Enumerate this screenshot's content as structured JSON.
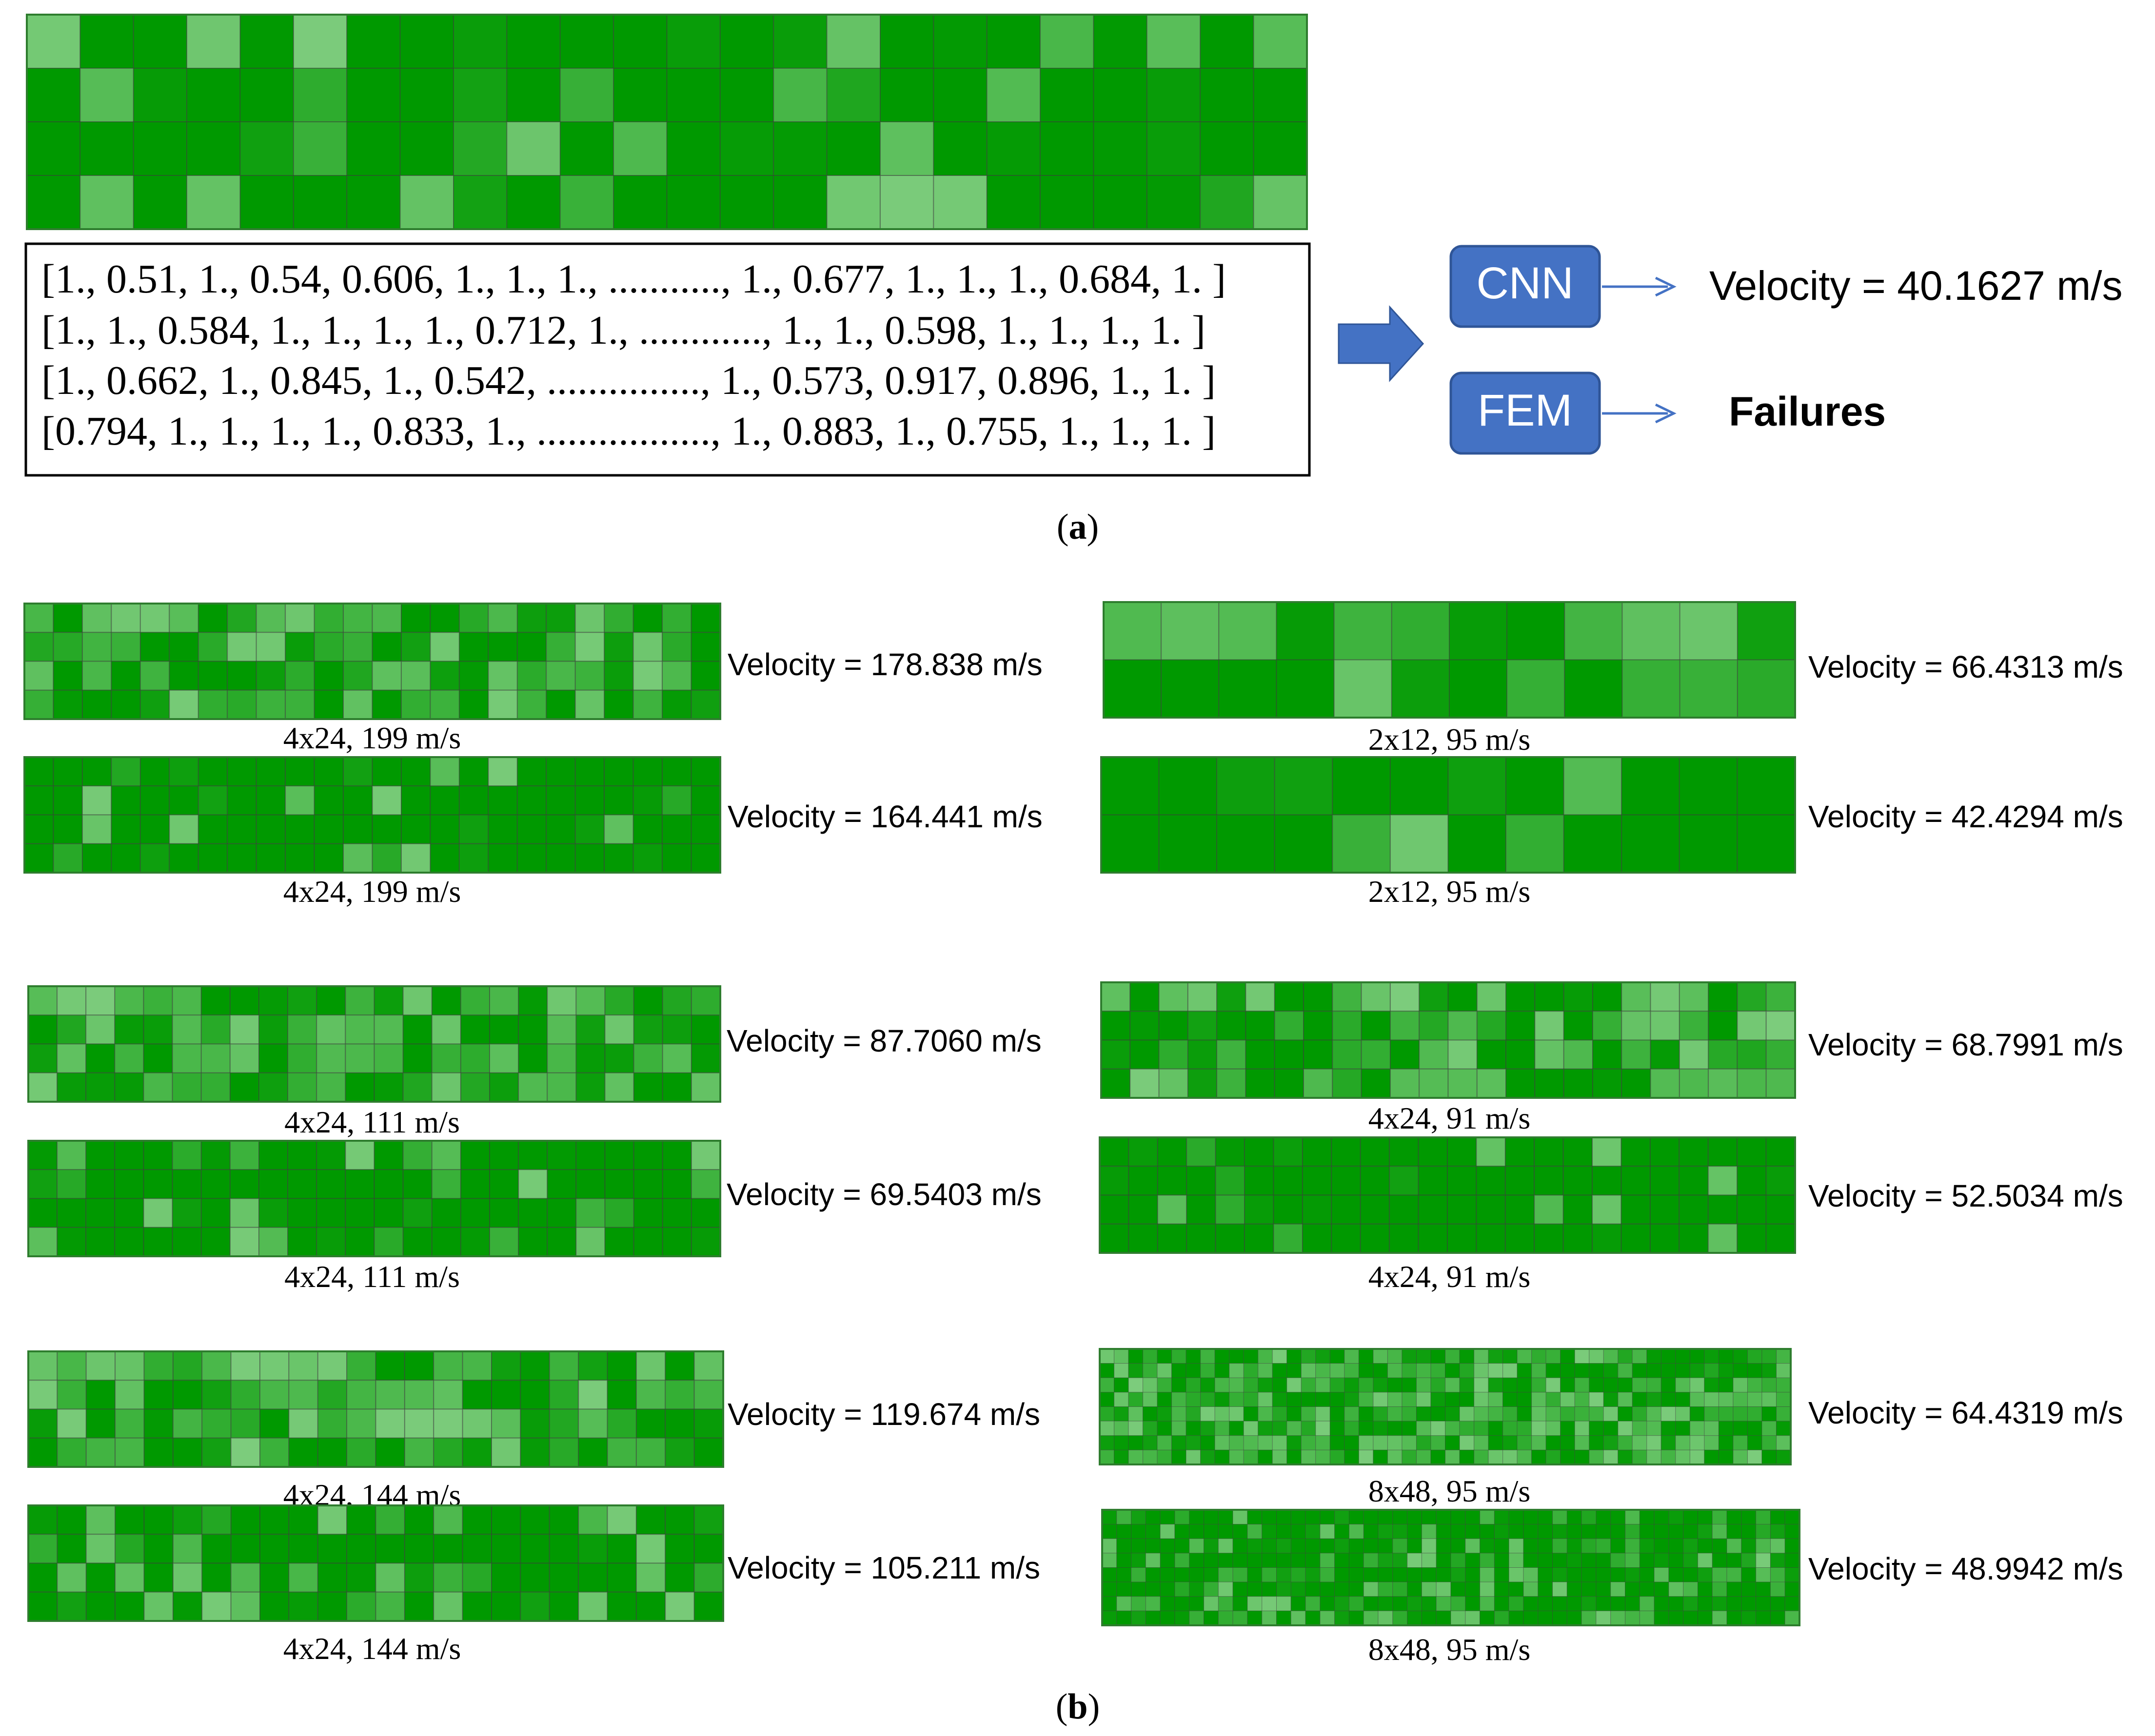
{
  "colors": {
    "dark_green": "#009900",
    "light_green": "#7ccc7c",
    "grid_line": "#555555",
    "box_blue": "#4472c4",
    "box_blue_border": "#2f5597",
    "arrow_blue": "#4472c4"
  },
  "panel_a": {
    "main_grid": {
      "rows": 4,
      "cols": 24
    },
    "matrix_lines": [
      "[1., 0.51, 1., 0.54, 0.606, 1., 1., 1., ..........., 1., 0.677, 1., 1., 1., 0.684, 1. ]",
      "[1., 1., 0.584, 1., 1., 1., 1., 0.712, 1., ............, 1., 1., 0.598, 1., 1., 1., 1.   ]",
      "[1., 0.662, 1., 0.845, 1., 0.542, ..............., 1., 0.573, 0.917, 0.896, 1., 1.  ]",
      "[0.794, 1., 1., 1., 1., 0.833, 1., ................., 1., 0.883, 1., 0.755, 1., 1., 1.  ]"
    ],
    "arrow_icon": "right-arrow-icon",
    "cnn_label": "CNN",
    "cnn_result": "Velocity = 40.1627 m/s",
    "fem_label": "FEM",
    "fem_result": "Failures",
    "caption": "a"
  },
  "panel_b": {
    "caption": "b",
    "items": [
      {
        "rows": 4,
        "cols": 24,
        "intensity": 0.55,
        "velocity": "Velocity = 178.838 m/s",
        "caption": "4x24, 199 m/s"
      },
      {
        "rows": 4,
        "cols": 24,
        "intensity": 0.12,
        "velocity": "Velocity = 164.441 m/s",
        "caption": "4x24, 199 m/s"
      },
      {
        "rows": 2,
        "cols": 12,
        "intensity": 0.45,
        "velocity": "Velocity = 66.4313 m/s",
        "caption": "2x12, 95 m/s"
      },
      {
        "rows": 2,
        "cols": 12,
        "intensity": 0.2,
        "velocity": "Velocity = 42.4294 m/s",
        "caption": "2x12, 95 m/s"
      },
      {
        "rows": 4,
        "cols": 24,
        "intensity": 0.55,
        "velocity": "Velocity = 87.7060 m/s",
        "caption": "4x24, 111 m/s"
      },
      {
        "rows": 4,
        "cols": 24,
        "intensity": 0.18,
        "velocity": "Velocity = 69.5403 m/s",
        "caption": "4x24, 111 m/s"
      },
      {
        "rows": 4,
        "cols": 24,
        "intensity": 0.55,
        "velocity": "Velocity = 68.7991 m/s",
        "caption": "4x24, 91 m/s"
      },
      {
        "rows": 4,
        "cols": 24,
        "intensity": 0.12,
        "velocity": "Velocity = 52.5034 m/s",
        "caption": "4x24, 91 m/s"
      },
      {
        "rows": 4,
        "cols": 24,
        "intensity": 0.55,
        "velocity": "Velocity = 119.674 m/s",
        "caption": "4x24, 144 m/s"
      },
      {
        "rows": 4,
        "cols": 24,
        "intensity": 0.3,
        "velocity": "Velocity = 105.211 m/s",
        "caption": "4x24, 144 m/s"
      },
      {
        "rows": 8,
        "cols": 48,
        "intensity": 0.6,
        "velocity": "Velocity = 64.4319 m/s",
        "caption": "8x48, 95 m/s"
      },
      {
        "rows": 8,
        "cols": 48,
        "intensity": 0.28,
        "velocity": "Velocity = 48.9942 m/s",
        "caption": "8x48, 95 m/s"
      }
    ]
  }
}
